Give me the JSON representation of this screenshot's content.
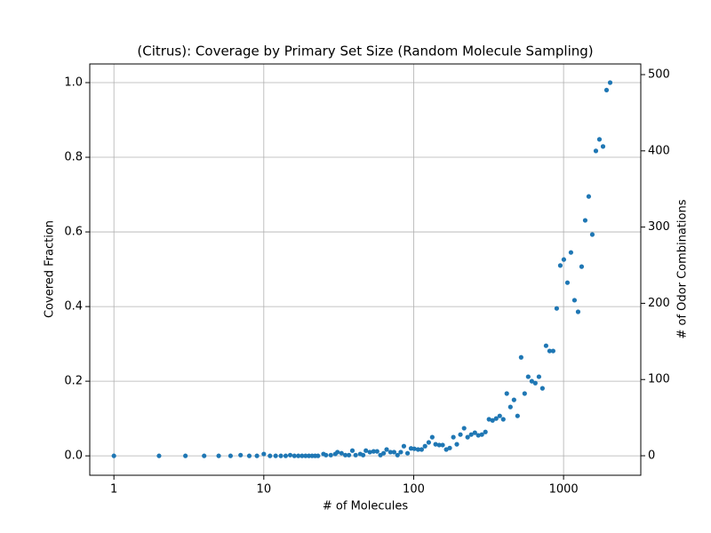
{
  "chart_data": {
    "type": "scatter",
    "title": "(Citrus): Coverage by Primary Set Size (Random Molecule Sampling)",
    "xlabel": "# of Molecules",
    "ylabel": "Covered Fraction",
    "y2label": "# of Odor Combinations",
    "xscale": "log",
    "grid": true,
    "xlim": [
      0.69,
      3275
    ],
    "xticks": [
      1,
      10,
      100,
      1000
    ],
    "ylim": [
      -0.052,
      1.05
    ],
    "yticks": [
      {
        "value": 0,
        "label": "0.0"
      },
      0.2,
      0.4,
      0.6,
      0.8,
      {
        "value": 1,
        "label": "1.0"
      }
    ],
    "y2lim": [
      -25.6,
      514
    ],
    "y2ticks": [
      0,
      100,
      200,
      300,
      400,
      500
    ],
    "series": [
      {
        "name": "Covered Fraction",
        "color": "#1f77b4",
        "x": [
          1,
          2,
          3,
          4,
          5,
          6,
          7,
          8,
          9,
          10,
          11,
          12,
          13,
          14,
          15,
          16,
          17,
          18,
          19,
          20,
          21,
          22,
          23,
          25,
          26,
          28,
          30,
          31,
          33,
          35,
          37,
          39,
          41,
          44,
          46,
          48,
          51,
          54,
          57,
          60,
          63,
          66,
          70,
          74,
          78,
          82,
          86,
          91,
          96,
          101,
          107,
          113,
          119,
          126,
          133,
          140,
          148,
          156,
          165,
          174,
          184,
          194,
          205,
          217,
          229,
          242,
          256,
          270,
          285,
          301,
          318,
          336,
          355,
          375,
          396,
          418,
          442,
          467,
          493,
          521,
          550,
          581,
          614,
          648,
          685,
          723,
          764,
          807,
          852,
          900,
          951,
          1004,
          1061,
          1120,
          1183,
          1250,
          1320,
          1394,
          1472,
          1555,
          1643,
          1735,
          1833,
          1936,
          2045
        ],
        "values": [
          0,
          0,
          0,
          0,
          0,
          0,
          0.002,
          0,
          0,
          0.005,
          0,
          0,
          0,
          0,
          0.002,
          0,
          0,
          0,
          0,
          0,
          0,
          0,
          0,
          0.005,
          0.002,
          0.002,
          0.005,
          0.01,
          0.007,
          0.002,
          0.002,
          0.014,
          0.002,
          0.005,
          0.002,
          0.014,
          0.01,
          0.012,
          0.012,
          0.002,
          0.007,
          0.017,
          0.01,
          0.01,
          0.002,
          0.01,
          0.026,
          0.007,
          0.02,
          0.019,
          0.017,
          0.017,
          0.026,
          0.036,
          0.05,
          0.031,
          0.029,
          0.029,
          0.017,
          0.021,
          0.05,
          0.031,
          0.057,
          0.074,
          0.05,
          0.057,
          0.062,
          0.055,
          0.057,
          0.064,
          0.098,
          0.095,
          0.1,
          0.107,
          0.098,
          0.167,
          0.131,
          0.15,
          0.107,
          0.264,
          0.167,
          0.212,
          0.2,
          0.195,
          0.212,
          0.181,
          0.295,
          0.281,
          0.281,
          0.395,
          0.51,
          0.526,
          0.464,
          0.545,
          0.417,
          0.386,
          0.507,
          0.631,
          0.695,
          0.593,
          0.817,
          0.848,
          0.829,
          0.98,
          1.0
        ]
      }
    ]
  }
}
